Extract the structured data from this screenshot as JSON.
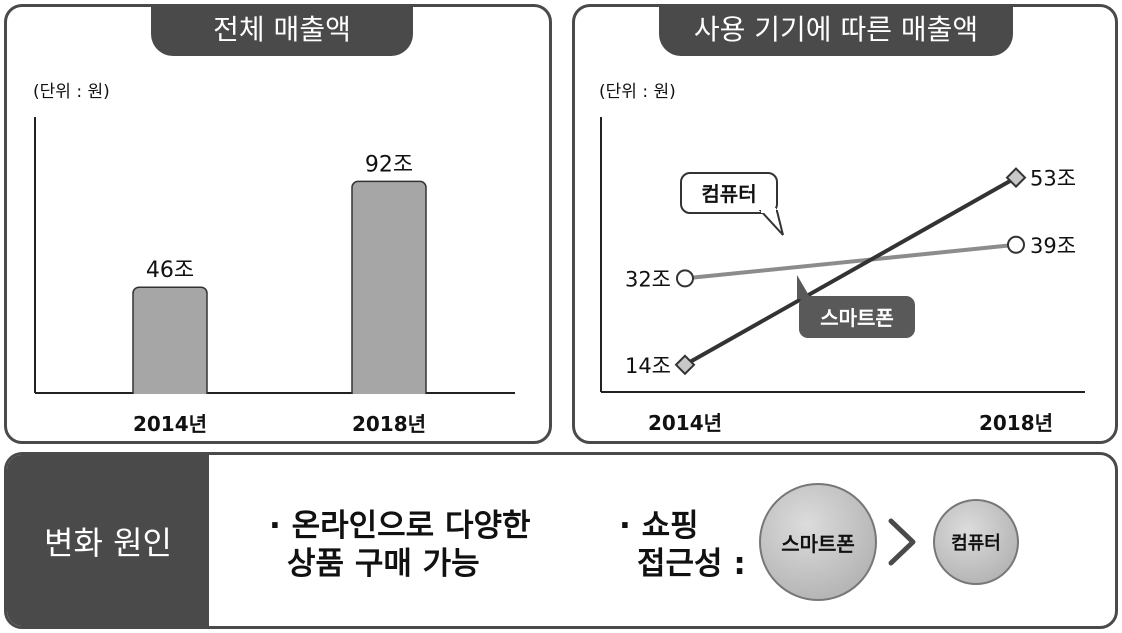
{
  "left_panel": {
    "title": "전체 매출액",
    "unit": "(단위 : 원)"
  },
  "right_panel": {
    "title": "사용 기기에 따른 매출액",
    "unit": "(단위 : 원)"
  },
  "chart_data": [
    {
      "type": "bar",
      "title": "전체 매출액",
      "unit": "(단위 : 원)",
      "categories": [
        "2014년",
        "2018년"
      ],
      "values": [
        46,
        92
      ],
      "value_labels": [
        "46조",
        "92조"
      ],
      "ylim": [
        0,
        120
      ],
      "bar_color": "#a6a6a6"
    },
    {
      "type": "line",
      "title": "사용 기기에 따른 매출액",
      "unit": "(단위 : 원)",
      "categories": [
        "2014년",
        "2018년"
      ],
      "ylim": [
        0,
        60
      ],
      "series": [
        {
          "name": "컴퓨터",
          "values": [
            32,
            39
          ],
          "value_labels": [
            "32조",
            "39조"
          ],
          "color": "#8c8c8c",
          "marker": "circle"
        },
        {
          "name": "스마트폰",
          "values": [
            14,
            53
          ],
          "value_labels": [
            "14조",
            "53조"
          ],
          "color": "#333333",
          "marker": "diamond"
        }
      ]
    }
  ],
  "bottom": {
    "label": "변화 원인",
    "reason1": {
      "line1": "· 온라인으로 다양한",
      "line2": "상품 구매 가능"
    },
    "reason2": {
      "line1": "· 쇼핑",
      "line2": "접근성 :"
    },
    "circle_big": "스마트폰",
    "comparison_icon": "greater-than-chevron-icon",
    "circle_small": "컴퓨터"
  },
  "colors": {
    "frame": "#4a4a4a",
    "bar": "#a6a6a6"
  }
}
